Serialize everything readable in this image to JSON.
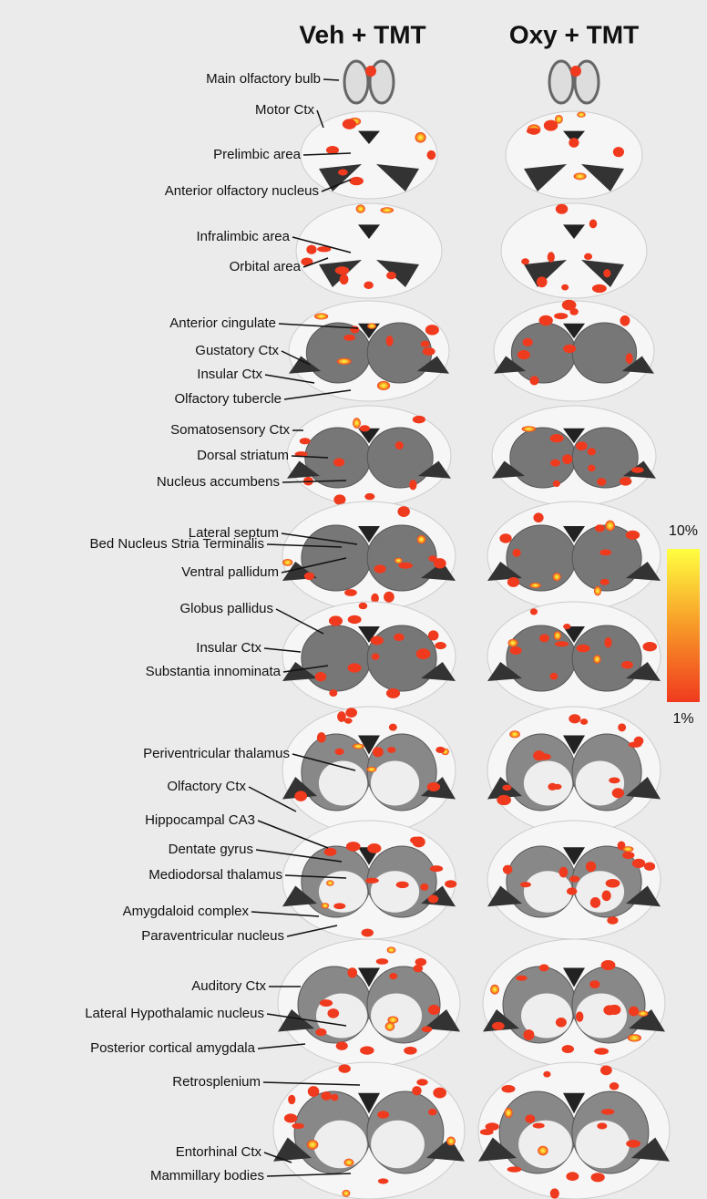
{
  "columns": [
    "Veh + TMT",
    "Oxy + TMT"
  ],
  "labels": [
    "Main olfactory bulb",
    "Motor Ctx",
    "Prelimbic area",
    "Anterior olfactory nucleus",
    "Infralimbic area",
    "Orbital area",
    "Anterior cingulate",
    "Gustatory Ctx",
    "Insular Ctx",
    "Olfactory tubercle",
    "Somatosensory Ctx",
    "Dorsal striatum",
    "Nucleus accumbens",
    "Lateral septum",
    "Bed Nucleus Stria Terminalis",
    "Ventral pallidum",
    "Globus pallidus",
    "Insular Ctx",
    "Substantia innominata",
    "Periventricular thalamus",
    "Olfactory Ctx",
    "Hippocampal CA3",
    "Dentate gyrus",
    "Mediodorsal thalamus",
    "Amygdaloid complex",
    "Paraventricular nucleus",
    "Auditory Ctx",
    "Lateral Hypothalamic nucleus",
    "Posterior cortical amygdala",
    "Retrosplenium",
    "Entorhinal Ctx",
    "Mammillary bodies"
  ],
  "colorbar": {
    "max": "10%",
    "min": "1%"
  }
}
